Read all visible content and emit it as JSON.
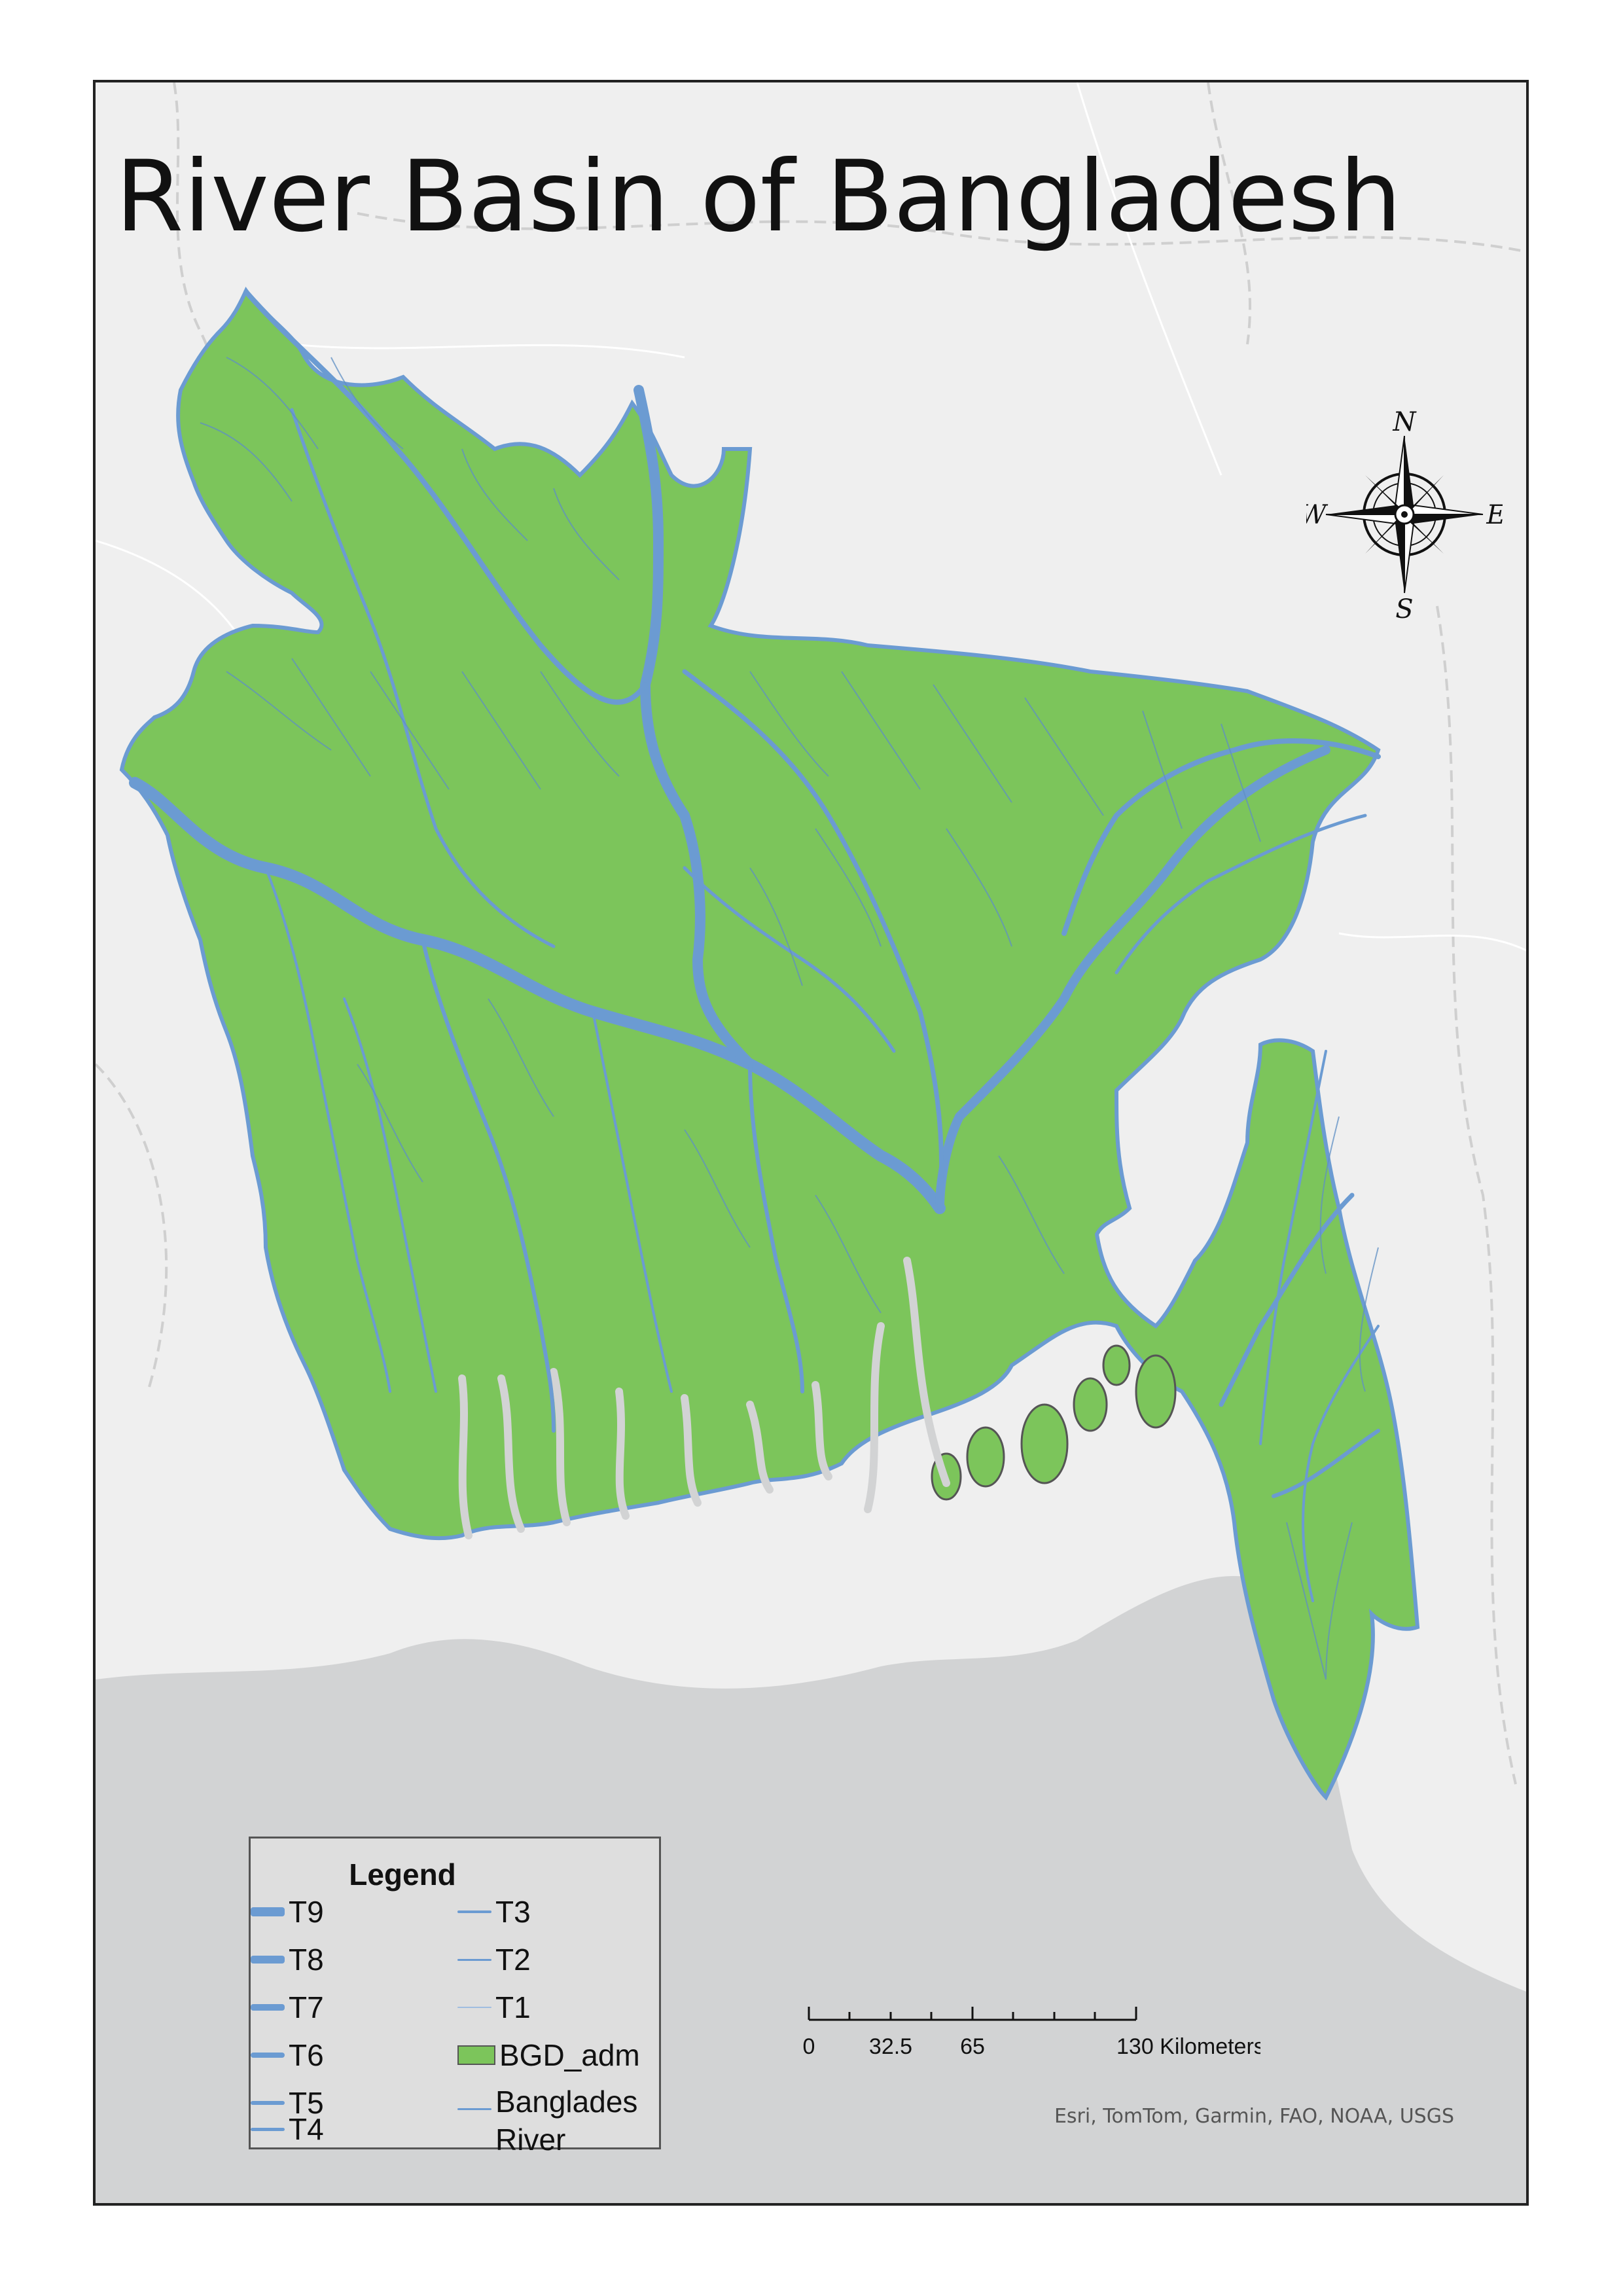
{
  "title": "River Basin of Bangladesh",
  "legend": {
    "title": "Legend",
    "items": [
      {
        "label": "T9",
        "kind": "line",
        "weight": 14
      },
      {
        "label": "T8",
        "kind": "line",
        "weight": 12
      },
      {
        "label": "T7",
        "kind": "line",
        "weight": 10
      },
      {
        "label": "T6",
        "kind": "line",
        "weight": 8
      },
      {
        "label": "T5",
        "kind": "line",
        "weight": 6
      },
      {
        "label": "T4",
        "kind": "line",
        "weight": 5
      },
      {
        "label": "T3",
        "kind": "line",
        "weight": 4
      },
      {
        "label": "T2",
        "kind": "line",
        "weight": 3
      },
      {
        "label": "T1",
        "kind": "line",
        "weight": 2
      },
      {
        "label": "BGD_adm",
        "kind": "fill"
      },
      {
        "label": "Banglades River",
        "kind": "line",
        "weight": 3
      }
    ]
  },
  "scale_bar": {
    "labels": [
      "0",
      "32.5",
      "65",
      "130 Kilometers"
    ]
  },
  "north_arrow": {
    "n": "N",
    "s": "S",
    "e": "E",
    "w": "W"
  },
  "attribution": "Esri, TomTom, Garmin, FAO, NOAA, USGS",
  "colors": {
    "land": "#7cc55b",
    "river": "#6b9bd2",
    "sea": "#d2d3d4",
    "background": "#efefef"
  }
}
